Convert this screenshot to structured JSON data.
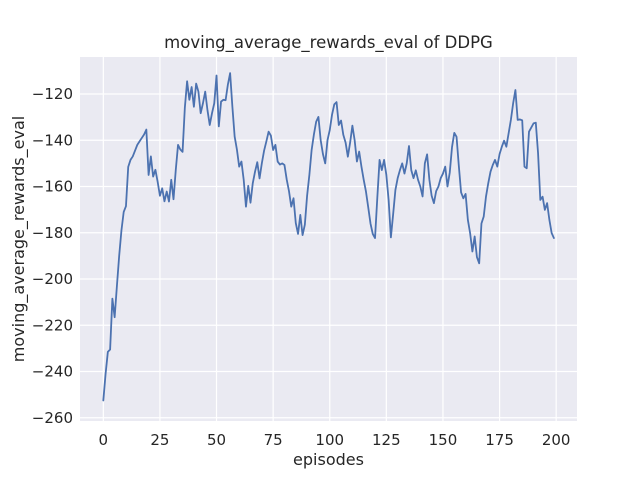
{
  "window": {
    "title": "moving_average_rewards_eval of DDPG figure"
  },
  "chart_data": {
    "type": "line",
    "title": "moving_average_rewards_eval of DDPG",
    "xlabel": "episodes",
    "ylabel": "moving_average_rewards_eval",
    "legend": null,
    "grid": true,
    "style": "seaborn-darkgrid",
    "colors": {
      "figure_bg": "#ffffff",
      "axes_bg": "#eaeaf2",
      "grid": "#ffffff",
      "line": "#4c72b0",
      "text": "#262626"
    },
    "x_ticks": [
      0,
      25,
      50,
      75,
      100,
      125,
      150,
      175,
      200
    ],
    "x_tick_labels": [
      "0",
      "25",
      "50",
      "75",
      "100",
      "125",
      "150",
      "175",
      "200"
    ],
    "y_ticks": [
      -120,
      -140,
      -160,
      -180,
      -200,
      -220,
      -240,
      -260
    ],
    "y_tick_labels": [
      "−120",
      "−140",
      "−160",
      "−180",
      "−200",
      "−220",
      "−240",
      "−260"
    ],
    "xlim": [
      -10.3,
      209.2
    ],
    "ylim": [
      -261.4,
      -104.0
    ],
    "series": [
      {
        "name": "moving_average_rewards_eval",
        "color": "#4c72b0",
        "x_start": 0,
        "x_step": 1,
        "values": [
          -252.5,
          -241,
          -231.5,
          -230.5,
          -208.5,
          -216.5,
          -203,
          -190,
          -179,
          -171,
          -168.5,
          -151.5,
          -148.5,
          -147,
          -144.5,
          -142,
          -140.5,
          -139,
          -137.5,
          -135.4,
          -155,
          -147,
          -155.7,
          -152.8,
          -158,
          -164,
          -160.8,
          -166.4,
          -162.2,
          -166.5,
          -157.1,
          -165.5,
          -152.8,
          -142,
          -144,
          -145,
          -126,
          -114.5,
          -122.5,
          -117,
          -125.5,
          -115.5,
          -119,
          -128.3,
          -124,
          -119,
          -127,
          -133.4,
          -128.3,
          -124,
          -112,
          -134,
          -123.3,
          -122.5,
          -122.7,
          -116,
          -111,
          -125.5,
          -138.4,
          -144,
          -151.4,
          -149.2,
          -157.1,
          -168.7,
          -159.7,
          -167,
          -158.6,
          -153.6,
          -149.5,
          -156.5,
          -150,
          -144.5,
          -140.5,
          -136.3,
          -138,
          -144.2,
          -142,
          -149.2,
          -150.5,
          -150,
          -150.7,
          -157,
          -162,
          -168.7,
          -165.1,
          -175.8,
          -180.5,
          -172.3,
          -181,
          -176.5,
          -164,
          -155,
          -144.2,
          -137.5,
          -132,
          -129.9,
          -140,
          -146,
          -150,
          -140,
          -135.6,
          -129,
          -124.5,
          -123.5,
          -133.4,
          -131.5,
          -137.7,
          -141,
          -147.1,
          -141,
          -133.7,
          -140,
          -149.2,
          -144.9,
          -151.4,
          -157.1,
          -162.2,
          -169,
          -176,
          -180.5,
          -182.3,
          -165,
          -148.5,
          -152.9,
          -148.5,
          -155,
          -165.8,
          -182,
          -172,
          -161.5,
          -156.4,
          -152.9,
          -150,
          -154.4,
          -150,
          -142.5,
          -152.9,
          -156.4,
          -153,
          -157.1,
          -160,
          -164.3,
          -150,
          -146.1,
          -157,
          -164,
          -167.2,
          -162,
          -160,
          -156.4,
          -154.4,
          -151.4,
          -160,
          -154,
          -143,
          -136.8,
          -138.5,
          -151,
          -162.5,
          -165.1,
          -163.2,
          -174.4,
          -180.2,
          -188.1,
          -181.6,
          -190.5,
          -193.2,
          -176,
          -173,
          -164.4,
          -158.6,
          -153.6,
          -150.7,
          -148.5,
          -151.4,
          -146,
          -142.8,
          -140.2,
          -142.8,
          -137,
          -131.2,
          -124,
          -118.3,
          -131.2,
          -131,
          -131.4,
          -151.4,
          -152.1,
          -136.3,
          -134.5,
          -132.7,
          -132.4,
          -145.6,
          -165.8,
          -164.4,
          -170.1,
          -167.2,
          -174.4,
          -180.1,
          -182.3
        ]
      }
    ]
  }
}
